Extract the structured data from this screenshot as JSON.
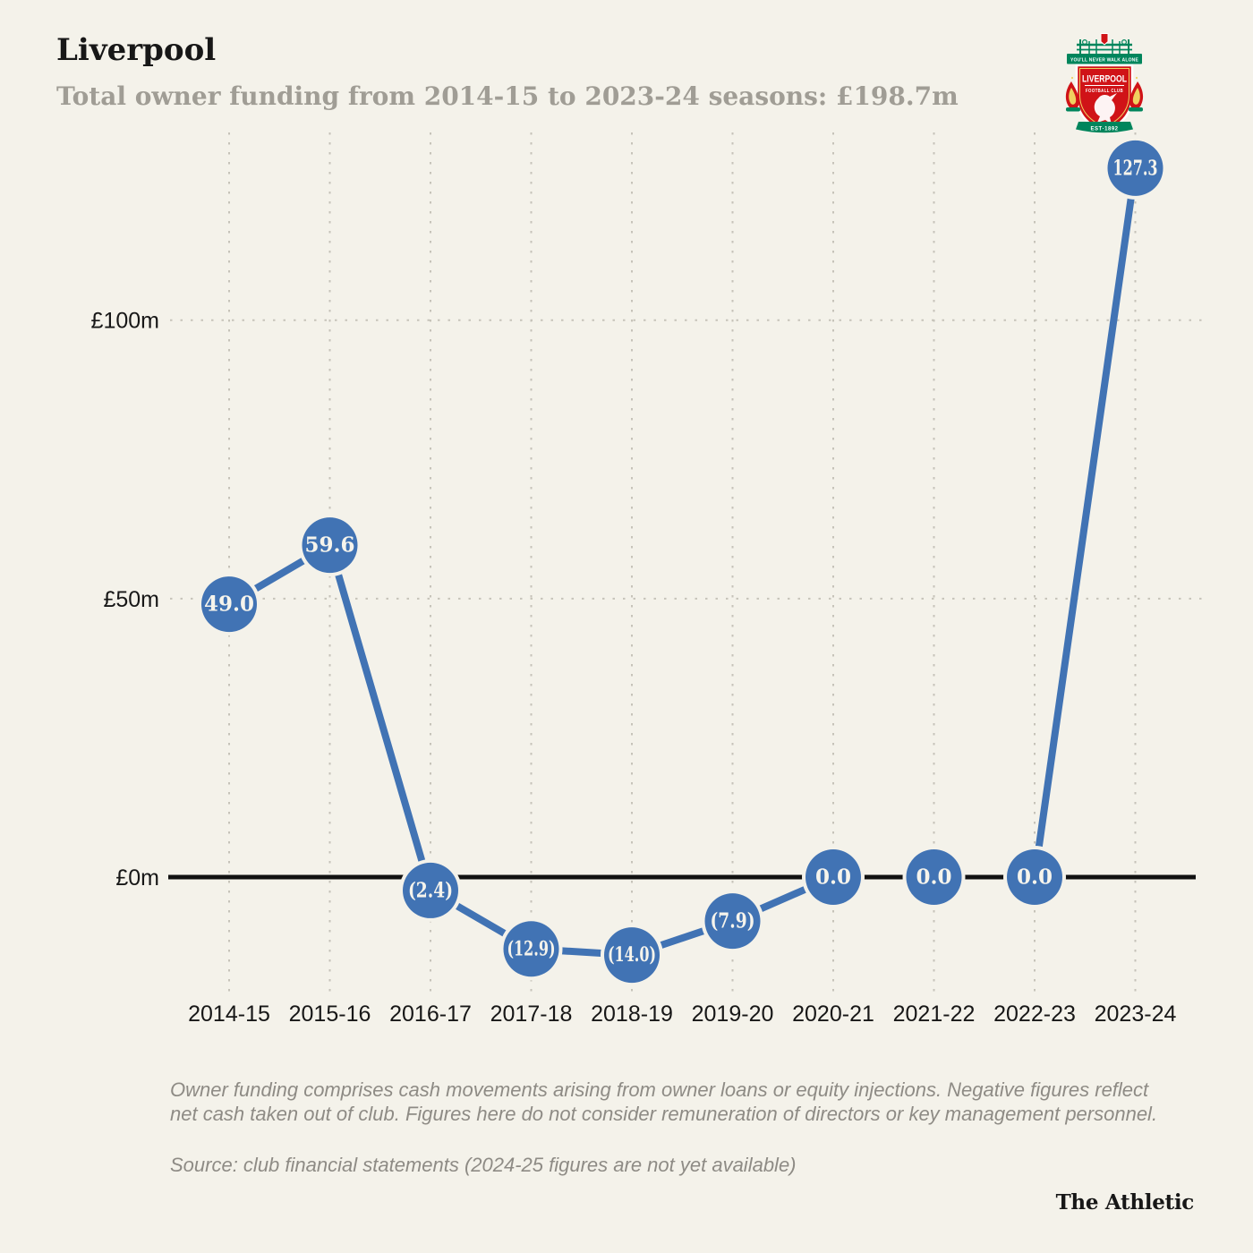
{
  "header": {
    "title": "Liverpool",
    "subtitle": "Total owner funding from 2014-15 to 2023-24 seasons: £198.7m"
  },
  "crest": {
    "motto": "YOU'LL NEVER WALK ALONE",
    "club_name": "LIVERPOOL",
    "club_type": "FOOTBALL CLUB",
    "established": "EST·1892"
  },
  "chart_data": {
    "type": "line",
    "title": "Total owner funding from 2014-15 to 2023-24 seasons",
    "total": "£198.7m",
    "categories": [
      "2014-15",
      "2015-16",
      "2016-17",
      "2017-18",
      "2018-19",
      "2019-20",
      "2020-21",
      "2021-22",
      "2022-23",
      "2023-24"
    ],
    "series": [
      {
        "name": "Owner funding (£m)",
        "values": [
          49.0,
          59.6,
          -2.4,
          -12.9,
          -14.0,
          -7.9,
          0.0,
          0.0,
          0.0,
          127.3
        ]
      }
    ],
    "point_labels": [
      "49.0",
      "59.6",
      "(2.4)",
      "(12.9)",
      "(14.0)",
      "(7.9)",
      "0.0",
      "0.0",
      "0.0",
      "127.3"
    ],
    "y_ticks": [
      {
        "value": 0,
        "label": "£0m"
      },
      {
        "value": 50,
        "label": "£50m"
      },
      {
        "value": 100,
        "label": "£100m"
      }
    ],
    "ylim": [
      -22,
      134
    ],
    "xlabel": "",
    "ylabel": "",
    "grid": "dotted",
    "legend": "none",
    "marker_style": "filled-circle-with-value",
    "negative_format": "parentheses"
  },
  "footnote": {
    "line1": "Owner funding comprises cash movements arising from owner loans or equity injections. Negative figures reflect",
    "line2": "net cash taken out of club. Figures here do not consider remuneration of directors or key management personnel.",
    "source": "Source: club financial statements (2024-25 figures are not yet available)"
  },
  "branding": {
    "publisher": "The Athletic"
  },
  "colors": {
    "background": "#f4f2ea",
    "ink": "#171717",
    "accent_blue": "#4173b4",
    "subtitle_gray": "#a09d95",
    "footnote_gray": "#8e8b85",
    "gridline": "#c6c3b9",
    "zero_line": "#111111",
    "point_label": "#f6f4ec",
    "crest_red": "#d01317",
    "crest_green": "#00855c",
    "crest_gold": "#f0d060"
  }
}
